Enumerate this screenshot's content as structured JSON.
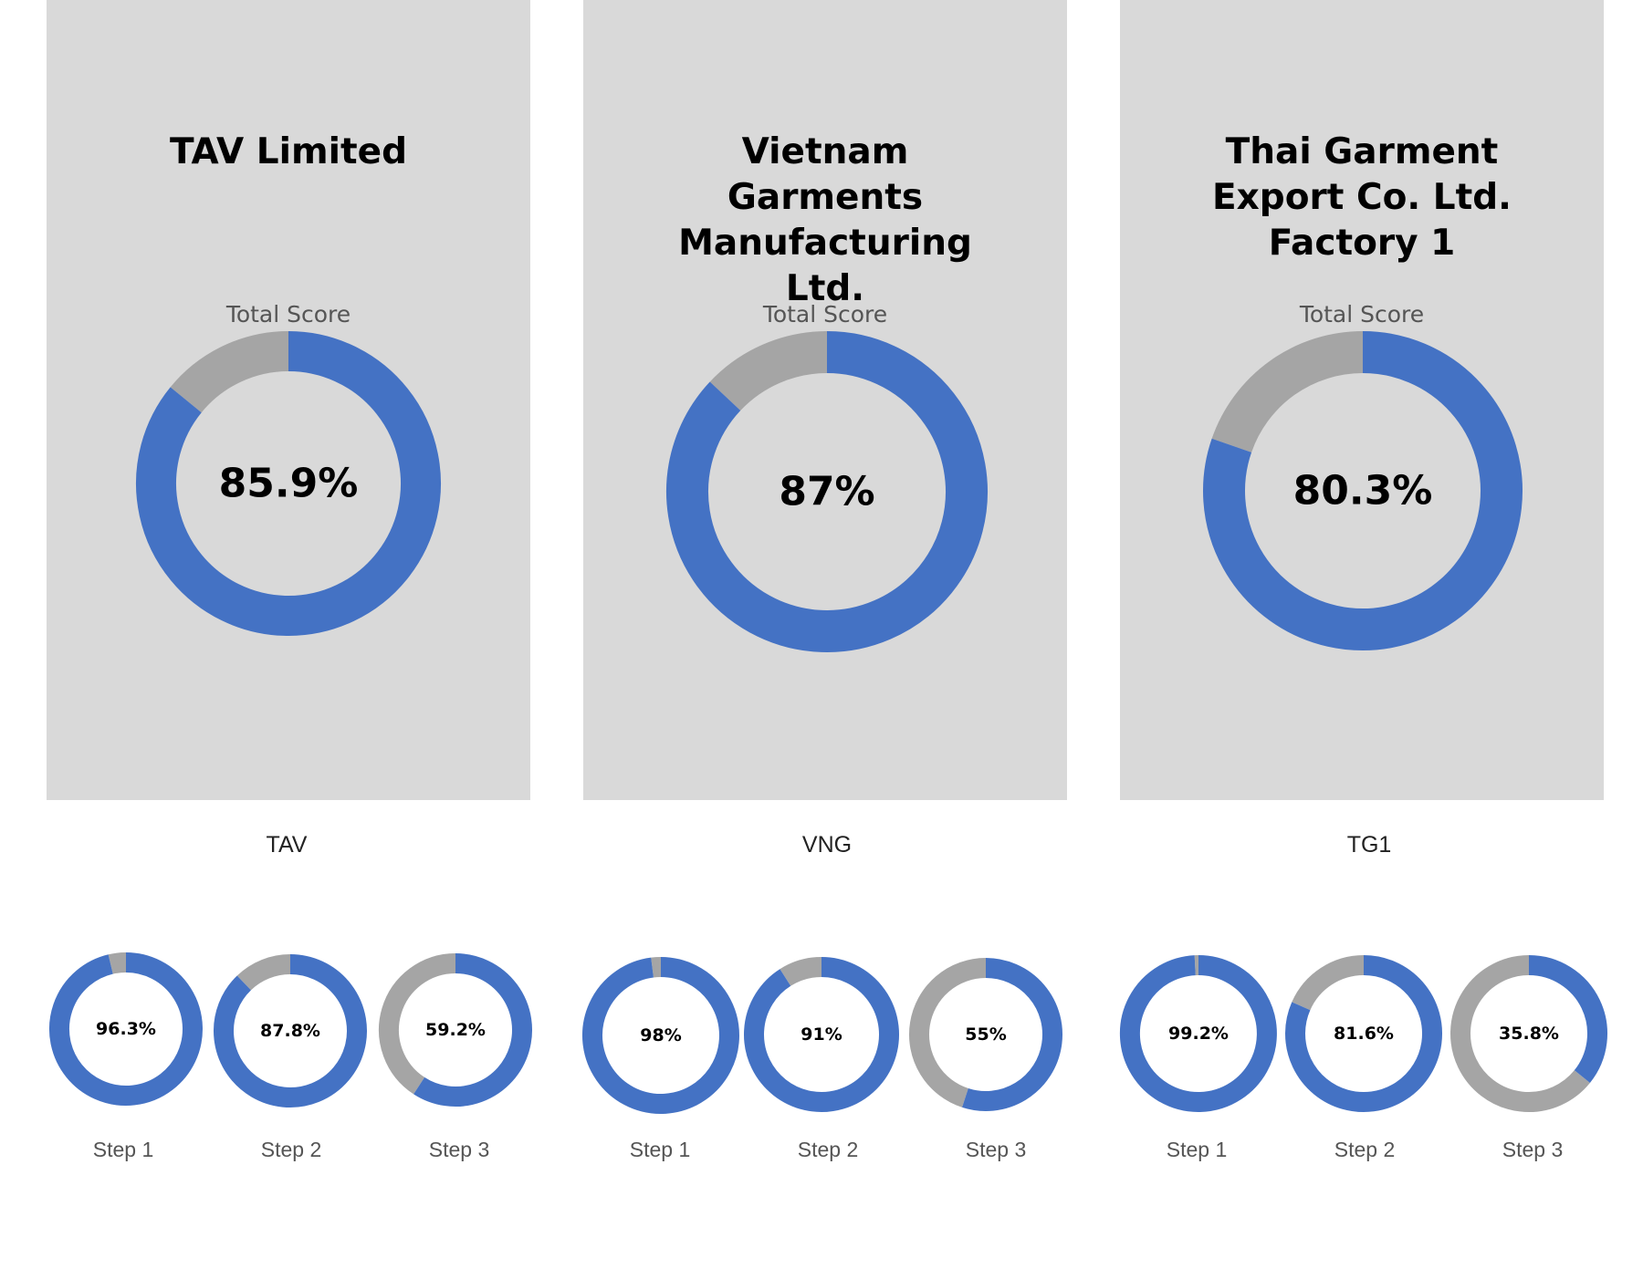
{
  "colors": {
    "score": "#4472c4",
    "remainder": "#a5a5a5",
    "panel": "#d9d9d9"
  },
  "chart_data": [
    {
      "type": "pie",
      "title": "TAV Limited",
      "subtitle": "Total Score",
      "value_label": "85.9%",
      "values": [
        85.9,
        14.1
      ],
      "categories": [
        "score",
        "remainder"
      ],
      "code": "TAV",
      "steps": [
        {
          "label": "Step 1",
          "value": 96.3,
          "value_label": "96.3%"
        },
        {
          "label": "Step 2",
          "value": 87.8,
          "value_label": "87.8%"
        },
        {
          "label": "Step 3",
          "value": 59.2,
          "value_label": "59.2%"
        }
      ]
    },
    {
      "type": "pie",
      "title": "Vietnam Garments Manufacturing Ltd.",
      "subtitle": "Total Score",
      "value_label": "87%",
      "values": [
        87,
        13
      ],
      "categories": [
        "score",
        "remainder"
      ],
      "code": "VNG",
      "steps": [
        {
          "label": "Step 1",
          "value": 98,
          "value_label": "98%"
        },
        {
          "label": "Step 2",
          "value": 91,
          "value_label": "91%"
        },
        {
          "label": "Step 3",
          "value": 55,
          "value_label": "55%"
        }
      ]
    },
    {
      "type": "pie",
      "title": "Thai Garment Export Co. Ltd. Factory 1",
      "subtitle": "Total Score",
      "value_label": "80.3%",
      "values": [
        80.3,
        19.7
      ],
      "categories": [
        "score",
        "remainder"
      ],
      "code": "TG1",
      "steps": [
        {
          "label": "Step 1",
          "value": 99.2,
          "value_label": "99.2%"
        },
        {
          "label": "Step 2",
          "value": 81.6,
          "value_label": "81.6%"
        },
        {
          "label": "Step 3",
          "value": 35.8,
          "value_label": "35.8%"
        }
      ]
    }
  ]
}
